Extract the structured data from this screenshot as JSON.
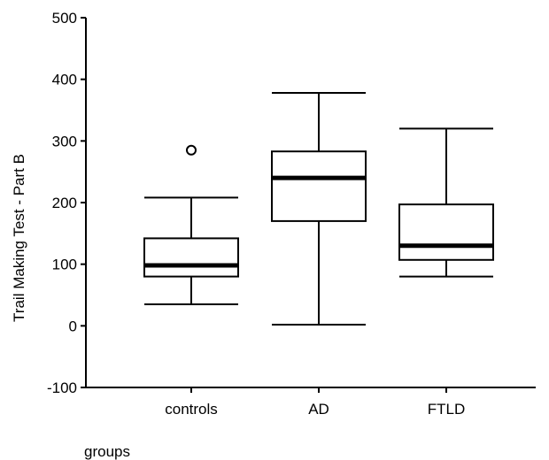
{
  "chart_data": {
    "type": "boxplot",
    "title": "",
    "xlabel": "groups",
    "ylabel": "Trail Making Test - Part B",
    "ylim": [
      -100,
      500
    ],
    "yticks": [
      -100,
      0,
      100,
      200,
      300,
      400,
      500
    ],
    "ytick_labels": [
      "-100",
      "0",
      "100",
      "200",
      "300",
      "400",
      "500"
    ],
    "grid": false,
    "categories": [
      "controls",
      "AD",
      "FTLD"
    ],
    "boxes": [
      {
        "category": "controls",
        "whisker_low": 35,
        "q1": 80,
        "median": 98,
        "q3": 142,
        "whisker_high": 208,
        "outliers": [
          285
        ]
      },
      {
        "category": "AD",
        "whisker_low": 2,
        "q1": 170,
        "median": 240,
        "q3": 283,
        "whisker_high": 378,
        "outliers": []
      },
      {
        "category": "FTLD",
        "whisker_low": 80,
        "q1": 107,
        "median": 130,
        "q3": 197,
        "whisker_high": 320,
        "outliers": []
      }
    ]
  }
}
